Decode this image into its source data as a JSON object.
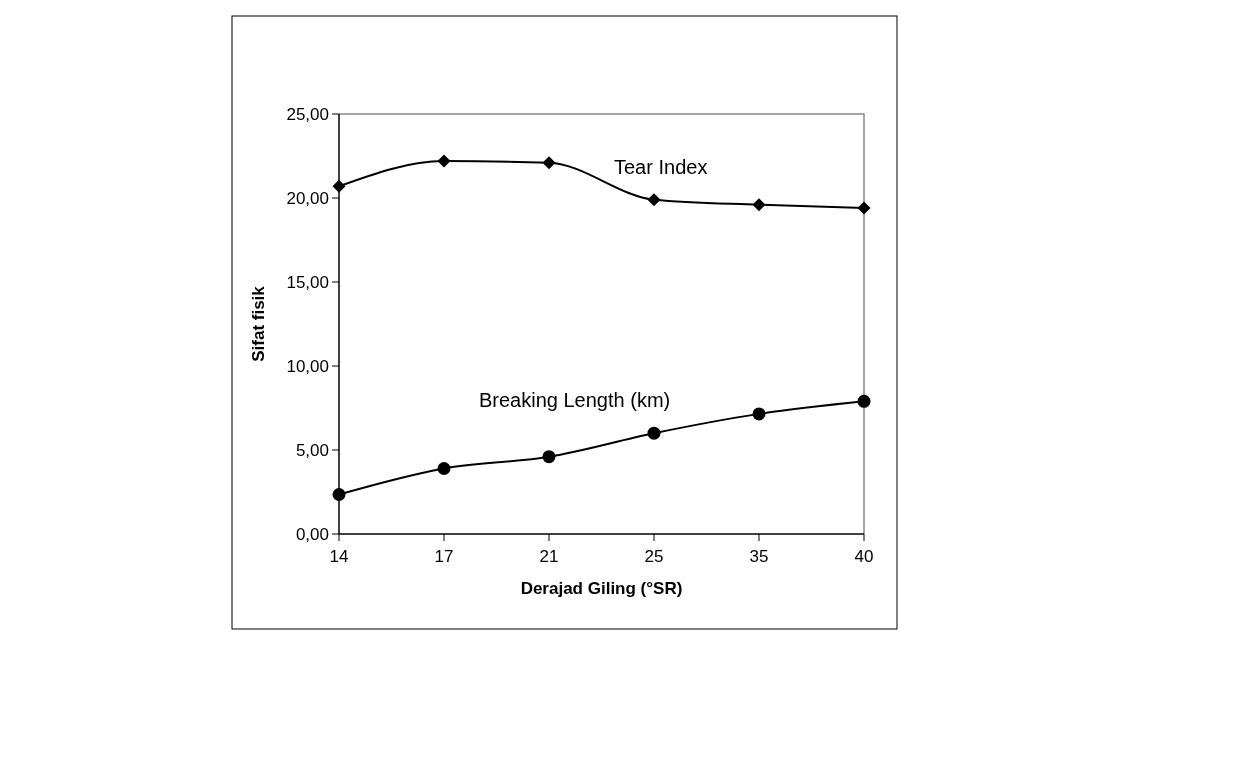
{
  "chart_data": {
    "type": "line",
    "xlabel": "Derajad Giling (°SR)",
    "ylabel": "Sifat fisik",
    "categories": [
      "14",
      "17",
      "21",
      "25",
      "35",
      "40"
    ],
    "series": [
      {
        "name": "Tear Index",
        "color": "#000000",
        "marker": "diamond",
        "values": [
          20.7,
          22.2,
          22.1,
          19.9,
          19.6,
          19.4
        ]
      },
      {
        "name": "Breaking Length (km)",
        "color": "#000000",
        "marker": "circle",
        "values": [
          2.35,
          3.9,
          4.6,
          6.0,
          7.15,
          7.9
        ]
      }
    ],
    "ylim": [
      0,
      25
    ],
    "yticks": [
      {
        "value": 0,
        "label": "0,00"
      },
      {
        "value": 5,
        "label": "5,00"
      },
      {
        "value": 10,
        "label": "10,00"
      },
      {
        "value": 15,
        "label": "15,00"
      },
      {
        "value": 20,
        "label": "20,00"
      },
      {
        "value": 25,
        "label": "25,00"
      }
    ],
    "line_style": "solid"
  }
}
